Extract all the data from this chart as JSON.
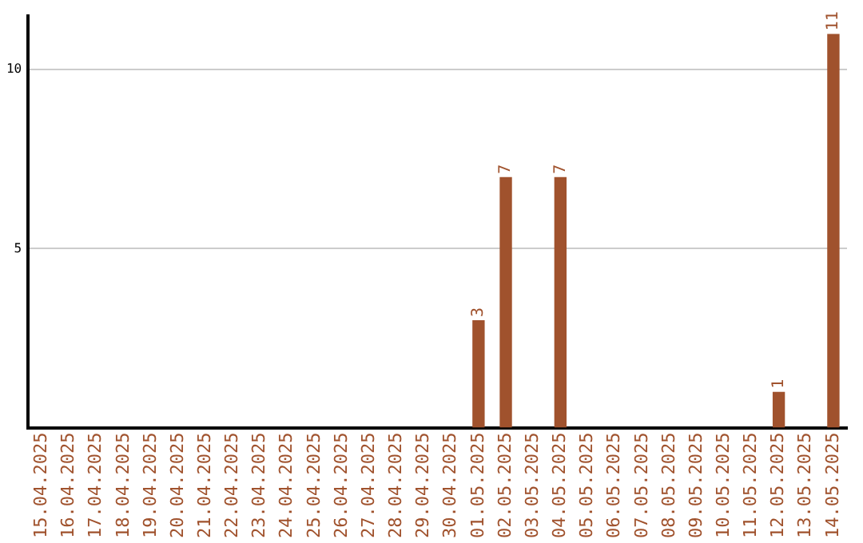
{
  "chart_data": {
    "type": "bar",
    "categories": [
      "15.04.2025",
      "16.04.2025",
      "17.04.2025",
      "18.04.2025",
      "19.04.2025",
      "20.04.2025",
      "21.04.2025",
      "22.04.2025",
      "23.04.2025",
      "24.04.2025",
      "25.04.2025",
      "26.04.2025",
      "27.04.2025",
      "28.04.2025",
      "29.04.2025",
      "30.04.2025",
      "01.05.2025",
      "02.05.2025",
      "03.05.2025",
      "04.05.2025",
      "05.05.2025",
      "06.05.2025",
      "07.05.2025",
      "08.05.2025",
      "09.05.2025",
      "10.05.2025",
      "11.05.2025",
      "12.05.2025",
      "13.05.2025",
      "14.05.2025"
    ],
    "values": [
      null,
      null,
      null,
      null,
      null,
      null,
      null,
      null,
      null,
      null,
      null,
      null,
      null,
      null,
      null,
      null,
      3,
      7,
      null,
      7,
      null,
      null,
      null,
      null,
      null,
      null,
      null,
      1,
      null,
      11
    ],
    "color": "#a0522d",
    "ylim": [
      0,
      11.5
    ],
    "yticks": [
      5,
      10
    ],
    "grid": "y",
    "data_labels": true
  }
}
